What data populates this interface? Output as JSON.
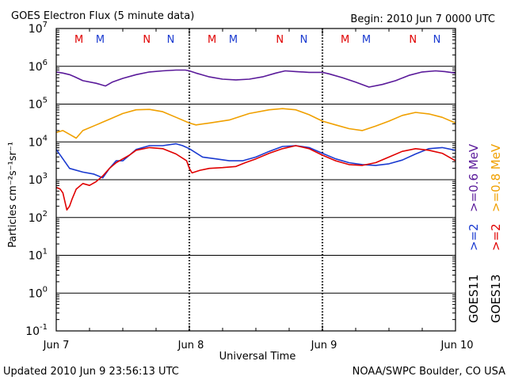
{
  "chart_data": {
    "type": "line",
    "title": "GOES Electron Flux (5 minute data)",
    "begin": "Begin: 2010 Jun 7 0000 UTC",
    "updated": "Updated 2010 Jun  9 23:56:13 UTC",
    "credit": "NOAA/SWPC Boulder, CO USA",
    "xlabel": "Universal Time",
    "ylabel": "Particles cm⁻²s⁻¹sr⁻¹",
    "x_ticks": [
      "Jun 7",
      "Jun 8",
      "Jun 9",
      "Jun 10"
    ],
    "xlim_days": [
      0,
      3
    ],
    "ylim_log10": [
      -1,
      7
    ],
    "y_ticks": [
      {
        "base": "10",
        "exp": "7"
      },
      {
        "base": "10",
        "exp": "6"
      },
      {
        "base": "10",
        "exp": "5"
      },
      {
        "base": "10",
        "exp": "4"
      },
      {
        "base": "10",
        "exp": "3"
      },
      {
        "base": "10",
        "exp": "2"
      },
      {
        "base": "10",
        "exp": "1"
      },
      {
        "base": "10",
        "exp": "0"
      },
      {
        "base": "10",
        "exp": "-1"
      }
    ],
    "threshold_log10": 3,
    "markers": [
      {
        "label": "M",
        "color": "#e00000",
        "day": 0.17
      },
      {
        "label": "M",
        "color": "#1a3ad0",
        "day": 0.33
      },
      {
        "label": "N",
        "color": "#e00000",
        "day": 0.68
      },
      {
        "label": "N",
        "color": "#1a3ad0",
        "day": 0.86
      },
      {
        "label": "M",
        "color": "#e00000",
        "day": 1.17
      },
      {
        "label": "M",
        "color": "#1a3ad0",
        "day": 1.33
      },
      {
        "label": "N",
        "color": "#e00000",
        "day": 1.68
      },
      {
        "label": "N",
        "color": "#1a3ad0",
        "day": 1.86
      },
      {
        "label": "M",
        "color": "#e00000",
        "day": 2.17
      },
      {
        "label": "M",
        "color": "#1a3ad0",
        "day": 2.33
      },
      {
        "label": "N",
        "color": "#e00000",
        "day": 2.68
      },
      {
        "label": "N",
        "color": "#1a3ad0",
        "day": 2.86
      }
    ],
    "legend": {
      "goes11": "GOES11",
      "goes13": "GOES13",
      "items": [
        {
          "text": ">=0.6  MeV",
          "color": "#5a1a9a"
        },
        {
          "text": ">=0.8  MeV",
          "color": "#f0a000"
        },
        {
          "text": ">=2",
          "color": "#1a3ad0"
        },
        {
          "text": ">=2",
          "color": "#e00000"
        }
      ]
    },
    "series": [
      {
        "name": "GOES11 >=0.6 MeV",
        "color": "#5a1a9a",
        "x": [
          0,
          0.05,
          0.1,
          0.14,
          0.2,
          0.3,
          0.37,
          0.42,
          0.5,
          0.6,
          0.7,
          0.8,
          0.9,
          0.97,
          1.0,
          1.05,
          1.15,
          1.25,
          1.35,
          1.45,
          1.55,
          1.65,
          1.72,
          1.8,
          1.9,
          2.0,
          2.05,
          2.15,
          2.25,
          2.35,
          2.45,
          2.55,
          2.65,
          2.75,
          2.85,
          2.92,
          3.0
        ],
        "y": [
          5.85,
          5.82,
          5.78,
          5.72,
          5.62,
          5.55,
          5.48,
          5.58,
          5.68,
          5.78,
          5.85,
          5.88,
          5.9,
          5.9,
          5.88,
          5.82,
          5.72,
          5.66,
          5.64,
          5.66,
          5.72,
          5.82,
          5.88,
          5.86,
          5.84,
          5.84,
          5.8,
          5.7,
          5.58,
          5.45,
          5.52,
          5.62,
          5.76,
          5.85,
          5.88,
          5.86,
          5.82
        ]
      },
      {
        "name": "GOES13 >=0.8 MeV",
        "color": "#f0a000",
        "x": [
          0,
          0.05,
          0.1,
          0.15,
          0.2,
          0.3,
          0.4,
          0.5,
          0.6,
          0.7,
          0.8,
          0.9,
          1.0,
          1.05,
          1.15,
          1.3,
          1.45,
          1.6,
          1.7,
          1.8,
          1.9,
          2.0,
          2.1,
          2.2,
          2.3,
          2.4,
          2.5,
          2.6,
          2.7,
          2.8,
          2.9,
          3.0
        ],
        "y": [
          4.25,
          4.3,
          4.2,
          4.1,
          4.3,
          4.45,
          4.6,
          4.75,
          4.85,
          4.86,
          4.8,
          4.65,
          4.5,
          4.45,
          4.5,
          4.58,
          4.75,
          4.85,
          4.88,
          4.85,
          4.72,
          4.55,
          4.45,
          4.35,
          4.3,
          4.42,
          4.55,
          4.7,
          4.78,
          4.74,
          4.65,
          4.5
        ]
      },
      {
        "name": "GOES11 >=2 MeV",
        "color": "#1a3ad0",
        "x": [
          0,
          0.05,
          0.1,
          0.2,
          0.28,
          0.35,
          0.4,
          0.45,
          0.5,
          0.55,
          0.6,
          0.7,
          0.8,
          0.9,
          0.95,
          1.0,
          1.1,
          1.2,
          1.3,
          1.4,
          1.5,
          1.6,
          1.7,
          1.8,
          1.9,
          2.0,
          2.1,
          2.2,
          2.3,
          2.4,
          2.5,
          2.6,
          2.7,
          2.8,
          2.9,
          3.0
        ],
        "y": [
          3.8,
          3.55,
          3.3,
          3.2,
          3.15,
          3.05,
          3.3,
          3.5,
          3.5,
          3.65,
          3.8,
          3.9,
          3.9,
          3.95,
          3.9,
          3.82,
          3.6,
          3.55,
          3.5,
          3.5,
          3.6,
          3.75,
          3.88,
          3.9,
          3.85,
          3.7,
          3.55,
          3.45,
          3.4,
          3.38,
          3.42,
          3.52,
          3.68,
          3.82,
          3.85,
          3.78
        ]
      },
      {
        "name": "GOES13 >=2 MeV",
        "color": "#e00000",
        "x": [
          0,
          0.03,
          0.05,
          0.08,
          0.1,
          0.12,
          0.15,
          0.2,
          0.25,
          0.3,
          0.35,
          0.4,
          0.45,
          0.5,
          0.55,
          0.6,
          0.7,
          0.8,
          0.9,
          0.98,
          1.0,
          1.02,
          1.08,
          1.15,
          1.25,
          1.35,
          1.42,
          1.5,
          1.6,
          1.7,
          1.8,
          1.9,
          2.0,
          2.1,
          2.2,
          2.3,
          2.4,
          2.5,
          2.6,
          2.7,
          2.8,
          2.9,
          3.0
        ],
        "y": [
          2.8,
          2.75,
          2.65,
          2.2,
          2.3,
          2.5,
          2.75,
          2.9,
          2.85,
          2.95,
          3.1,
          3.3,
          3.45,
          3.55,
          3.65,
          3.78,
          3.85,
          3.82,
          3.68,
          3.5,
          3.3,
          3.18,
          3.25,
          3.3,
          3.32,
          3.35,
          3.45,
          3.55,
          3.7,
          3.82,
          3.9,
          3.82,
          3.65,
          3.5,
          3.4,
          3.38,
          3.45,
          3.6,
          3.75,
          3.82,
          3.78,
          3.7,
          3.5
        ]
      }
    ]
  }
}
